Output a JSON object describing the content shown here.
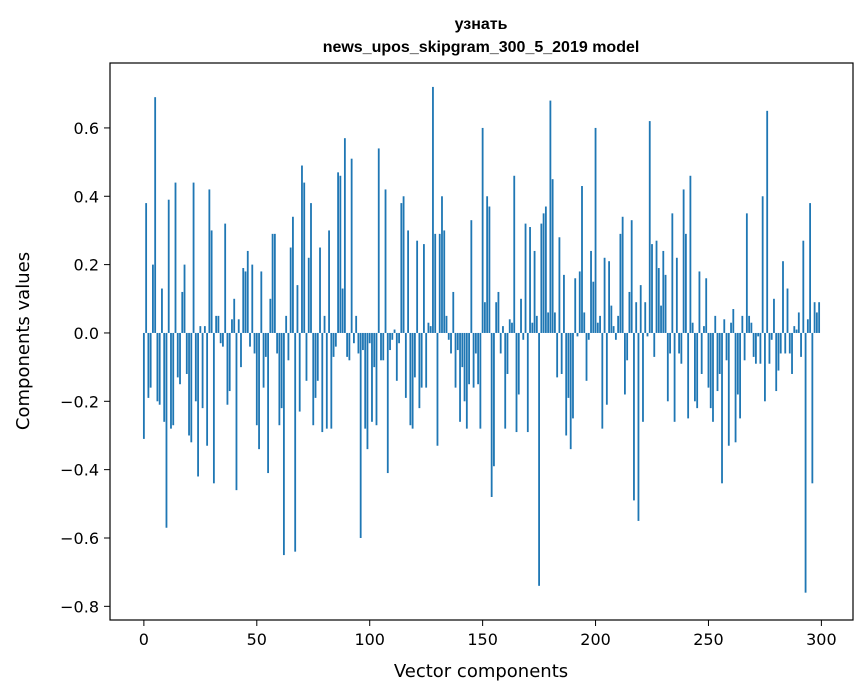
{
  "chart_data": {
    "type": "bar",
    "title": "узнать",
    "subtitle": "news_upos_skipgram_300_5_2019 model",
    "xlabel": "Vector components",
    "ylabel": "Components values",
    "xlim": [
      -15,
      314
    ],
    "ylim": [
      -0.84,
      0.79
    ],
    "xticks": [
      0,
      50,
      100,
      150,
      200,
      250,
      300
    ],
    "yticks": [
      -0.8,
      -0.6,
      -0.4,
      -0.2,
      0.0,
      0.2,
      0.4,
      0.6
    ],
    "xtick_labels": [
      "0",
      "50",
      "100",
      "150",
      "200",
      "250",
      "300"
    ],
    "ytick_labels": [
      "−0.8",
      "−0.6",
      "−0.4",
      "−0.2",
      "0.0",
      "0.2",
      "0.4",
      "0.6"
    ],
    "grid": false,
    "color": "#1f77b4",
    "values": [
      -0.31,
      0.38,
      -0.19,
      -0.16,
      0.2,
      0.69,
      -0.2,
      -0.21,
      0.13,
      -0.26,
      -0.57,
      0.39,
      -0.28,
      -0.27,
      0.44,
      -0.13,
      -0.15,
      0.12,
      0.2,
      -0.12,
      -0.3,
      -0.32,
      0.44,
      -0.2,
      -0.42,
      0.02,
      -0.22,
      0.02,
      -0.33,
      0.42,
      0.3,
      -0.44,
      0.05,
      0.05,
      -0.03,
      -0.04,
      0.32,
      -0.21,
      -0.17,
      0.04,
      0.1,
      -0.46,
      0.04,
      -0.1,
      0.19,
      0.18,
      0.24,
      -0.04,
      0.2,
      -0.06,
      -0.27,
      -0.34,
      0.18,
      -0.16,
      -0.07,
      -0.41,
      0.1,
      0.29,
      0.29,
      -0.06,
      -0.27,
      -0.22,
      -0.65,
      0.05,
      -0.08,
      0.25,
      0.34,
      -0.64,
      0.14,
      -0.23,
      0.49,
      0.44,
      -0.14,
      0.22,
      0.38,
      -0.27,
      -0.19,
      -0.14,
      0.25,
      -0.29,
      0.05,
      -0.28,
      0.3,
      -0.28,
      -0.07,
      -0.04,
      0.47,
      0.46,
      0.13,
      0.57,
      -0.07,
      -0.08,
      0.51,
      -0.03,
      0.05,
      -0.06,
      -0.6,
      -0.05,
      -0.28,
      -0.34,
      -0.03,
      -0.26,
      -0.1,
      -0.27,
      0.54,
      -0.08,
      -0.08,
      0.42,
      -0.41,
      -0.05,
      -0.02,
      0.01,
      -0.14,
      -0.03,
      0.38,
      0.4,
      -0.19,
      0.3,
      -0.27,
      -0.28,
      -0.13,
      0.27,
      -0.22,
      -0.16,
      0.26,
      -0.16,
      0.03,
      0.02,
      0.72,
      0.29,
      -0.33,
      0.29,
      0.4,
      0.3,
      0.05,
      -0.02,
      -0.06,
      0.12,
      -0.16,
      -0.05,
      -0.26,
      -0.1,
      -0.2,
      -0.28,
      -0.15,
      0.33,
      -0.16,
      -0.06,
      -0.15,
      -0.28,
      0.6,
      0.09,
      0.4,
      0.37,
      -0.48,
      -0.39,
      0.09,
      0.12,
      -0.06,
      0.02,
      -0.28,
      -0.12,
      0.04,
      0.03,
      0.46,
      -0.29,
      -0.18,
      0.1,
      -0.02,
      0.32,
      -0.29,
      0.31,
      0.03,
      0.24,
      0.05,
      -0.74,
      0.32,
      0.35,
      0.37,
      0.06,
      0.68,
      0.45,
      0.06,
      -0.13,
      0.28,
      -0.12,
      0.17,
      -0.3,
      -0.19,
      -0.34,
      -0.25,
      0.16,
      -0.01,
      0.18,
      0.43,
      0.06,
      -0.14,
      -0.02,
      0.24,
      0.15,
      0.6,
      0.03,
      0.05,
      -0.28,
      0.22,
      -0.21,
      0.21,
      0.08,
      0.02,
      -0.02,
      0.05,
      0.29,
      0.34,
      -0.18,
      -0.08,
      0.12,
      0.33,
      -0.49,
      0.09,
      -0.55,
      0.14,
      -0.26,
      0.09,
      -0.01,
      0.62,
      0.26,
      -0.07,
      0.27,
      0.19,
      0.08,
      0.24,
      0.17,
      -0.2,
      -0.06,
      0.35,
      -0.26,
      0.22,
      -0.06,
      -0.09,
      0.42,
      0.29,
      -0.25,
      0.46,
      0.03,
      -0.2,
      -0.22,
      0.18,
      -0.12,
      0.02,
      0.16,
      -0.16,
      -0.22,
      -0.26,
      0.05,
      -0.17,
      -0.12,
      -0.44,
      0.04,
      -0.08,
      -0.33,
      0.03,
      0.07,
      -0.32,
      -0.18,
      -0.25,
      0.05,
      -0.08,
      0.35,
      0.05,
      0.03,
      -0.07,
      -0.09,
      -0.01,
      -0.09,
      0.4,
      -0.2,
      0.65,
      -0.09,
      -0.02,
      0.1,
      -0.17,
      -0.11,
      -0.06,
      0.21,
      -0.06,
      0.13,
      -0.06,
      -0.12,
      0.02,
      0.01,
      0.06,
      -0.07,
      0.27,
      -0.76,
      0.04,
      0.38,
      -0.44,
      0.09,
      0.06,
      0.09
    ]
  }
}
